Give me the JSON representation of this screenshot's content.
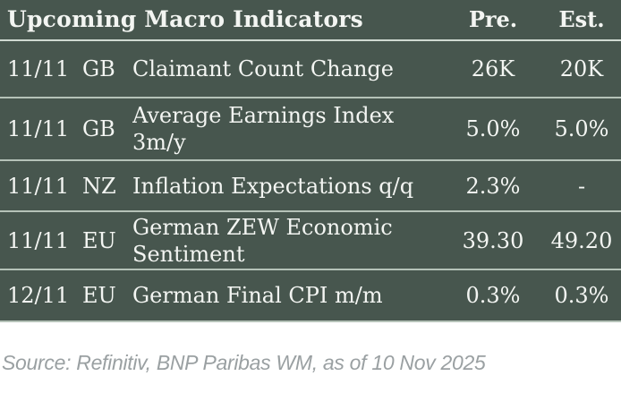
{
  "chart_data": {
    "type": "table",
    "title": "Upcoming Macro Indicators",
    "header": {
      "pre": "Pre.",
      "est": "Est."
    },
    "rows": [
      {
        "date": "11/11",
        "country": "GB",
        "indicator": "Claimant Count Change",
        "pre": "26K",
        "est": "20K"
      },
      {
        "date": "11/11",
        "country": "GB",
        "indicator": "Average Earnings Index 3m/y",
        "pre": "5.0%",
        "est": "5.0%"
      },
      {
        "date": "11/11",
        "country": "NZ",
        "indicator": "Inflation Expectations q/q",
        "pre": "2.3%",
        "est": "-"
      },
      {
        "date": "11/11",
        "country": "EU",
        "indicator": "German ZEW Economic Sentiment",
        "pre": "39.30",
        "est": "49.20"
      },
      {
        "date": "12/11",
        "country": "EU",
        "indicator": "German Final CPI m/m",
        "pre": "0.3%",
        "est": "0.3%"
      }
    ]
  },
  "footer": {
    "source": "Source: Refinitiv, BNP Paribas WM, as of 10 Nov 2025"
  },
  "colors": {
    "table_bg": "#47564e",
    "divider": "#b5c2b8",
    "header_divider": "#cfd9d1",
    "text": "#f3f5f2",
    "source_text": "#9aa0a2",
    "footer_bg": "#ffffff"
  }
}
